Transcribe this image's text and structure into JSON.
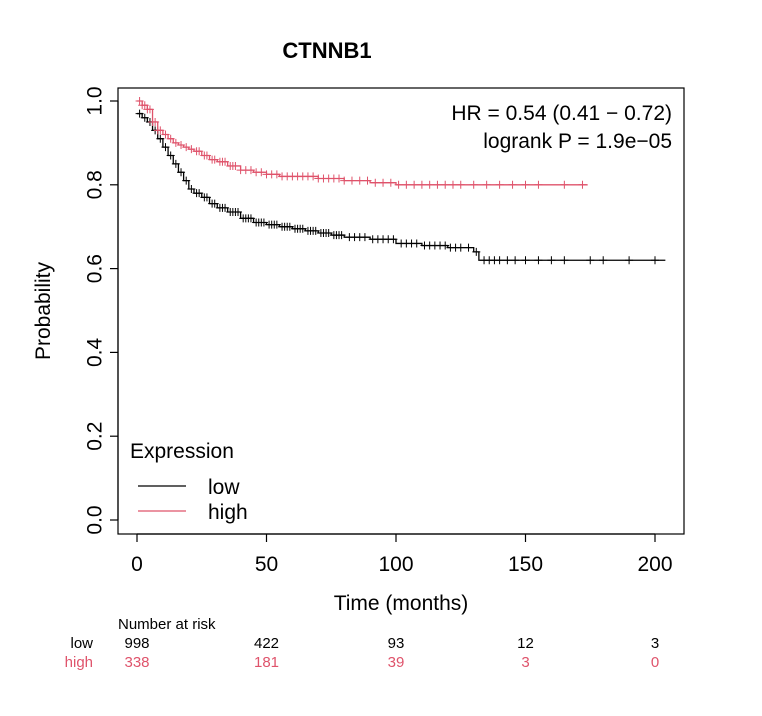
{
  "chart_data": {
    "type": "line",
    "title": "CTNNB1",
    "xlabel": "Time (months)",
    "ylabel": "Probability",
    "xlim": [
      0,
      200
    ],
    "ylim": [
      0,
      1
    ],
    "x_ticks": [
      "0",
      "50",
      "100",
      "150",
      "200"
    ],
    "y_ticks": [
      "0.0",
      "0.2",
      "0.4",
      "0.6",
      "0.8",
      "1.0"
    ],
    "annotations": {
      "hr": "HR = 0.54 (0.41 − 0.72)",
      "logrank": "logrank P = 1.9e−05"
    },
    "legend": {
      "title": "Expression",
      "position": "bottom-left",
      "entries": [
        {
          "label": "low",
          "color": "#000000"
        },
        {
          "label": "high",
          "color": "#DF536B"
        }
      ]
    },
    "series": [
      {
        "name": "low",
        "color": "#000000",
        "x": [
          0,
          2,
          4,
          6,
          8,
          10,
          12,
          14,
          16,
          18,
          20,
          22,
          25,
          28,
          31,
          35,
          40,
          45,
          50,
          55,
          60,
          65,
          70,
          75,
          80,
          90,
          100,
          110,
          120,
          130,
          132,
          150,
          170,
          190,
          204
        ],
        "y": [
          0.97,
          0.96,
          0.95,
          0.93,
          0.91,
          0.89,
          0.87,
          0.85,
          0.83,
          0.81,
          0.79,
          0.78,
          0.77,
          0.755,
          0.745,
          0.735,
          0.72,
          0.71,
          0.705,
          0.7,
          0.695,
          0.69,
          0.685,
          0.68,
          0.675,
          0.67,
          0.66,
          0.655,
          0.65,
          0.64,
          0.62,
          0.62,
          0.62,
          0.62,
          0.62
        ],
        "censor_x": [
          1,
          3,
          5,
          7,
          9,
          11,
          13,
          15,
          17,
          19,
          21,
          23,
          24,
          26,
          27,
          29,
          30,
          32,
          33,
          34,
          36,
          37,
          38,
          39,
          41,
          42,
          43,
          44,
          46,
          47,
          48,
          49,
          51,
          52,
          53,
          54,
          56,
          57,
          58,
          59,
          61,
          62,
          63,
          64,
          66,
          67,
          68,
          69,
          71,
          72,
          73,
          74,
          76,
          77,
          78,
          79,
          82,
          84,
          86,
          88,
          91,
          93,
          95,
          97,
          99,
          102,
          104,
          106,
          108,
          111,
          113,
          115,
          117,
          119,
          121,
          123,
          125,
          128,
          131,
          134,
          136,
          138,
          140,
          143,
          146,
          150,
          155,
          160,
          165,
          175,
          180,
          190,
          200
        ]
      },
      {
        "name": "high",
        "color": "#DF536B",
        "x": [
          0,
          2,
          4,
          6,
          8,
          10,
          12,
          14,
          16,
          18,
          20,
          22,
          25,
          28,
          31,
          35,
          40,
          45,
          50,
          55,
          60,
          70,
          80,
          90,
          100,
          110,
          120,
          140,
          160,
          174
        ],
        "y": [
          1.0,
          0.99,
          0.98,
          0.95,
          0.93,
          0.92,
          0.91,
          0.9,
          0.895,
          0.89,
          0.885,
          0.88,
          0.87,
          0.86,
          0.855,
          0.845,
          0.835,
          0.83,
          0.825,
          0.82,
          0.82,
          0.815,
          0.81,
          0.805,
          0.8,
          0.8,
          0.8,
          0.8,
          0.8,
          0.8
        ],
        "censor_x": [
          1,
          2,
          3,
          4,
          5,
          6,
          7,
          8,
          9,
          11,
          13,
          15,
          17,
          19,
          21,
          23,
          24,
          26,
          27,
          29,
          30,
          32,
          33,
          34,
          36,
          37,
          38,
          40,
          42,
          44,
          46,
          48,
          50,
          52,
          54,
          56,
          58,
          60,
          62,
          64,
          66,
          68,
          70,
          72,
          74,
          76,
          78,
          80,
          83,
          86,
          89,
          92,
          95,
          98,
          101,
          104,
          107,
          110,
          113,
          116,
          119,
          122,
          125,
          130,
          135,
          140,
          145,
          150,
          155,
          165,
          172
        ]
      }
    ],
    "risk_table": {
      "title": "Number at risk",
      "times": [
        0,
        50,
        100,
        150,
        200
      ],
      "rows": [
        {
          "group": "low",
          "color": "#000000",
          "counts": [
            "998",
            "422",
            "93",
            "12",
            "3"
          ]
        },
        {
          "group": "high",
          "color": "#DF536B",
          "counts": [
            "338",
            "181",
            "39",
            "3",
            "0"
          ]
        }
      ]
    }
  }
}
